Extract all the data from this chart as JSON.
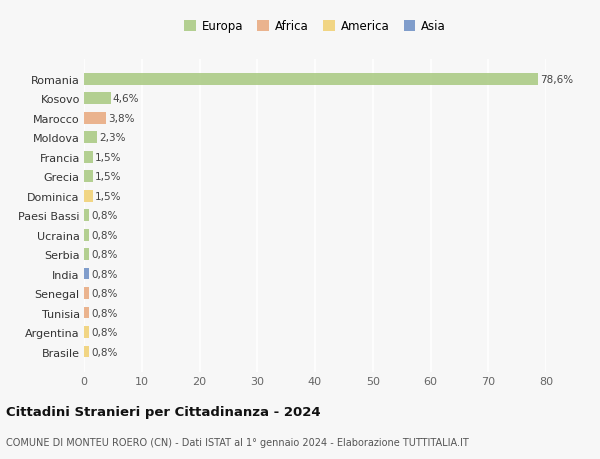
{
  "title": "Cittadini Stranieri per Cittadinanza - 2024",
  "subtitle": "COMUNE DI MONTEU ROERO (CN) - Dati ISTAT al 1° gennaio 2024 - Elaborazione TUTTITALIA.IT",
  "categories": [
    "Romania",
    "Kosovo",
    "Marocco",
    "Moldova",
    "Francia",
    "Grecia",
    "Dominica",
    "Paesi Bassi",
    "Ucraina",
    "Serbia",
    "India",
    "Senegal",
    "Tunisia",
    "Argentina",
    "Brasile"
  ],
  "values": [
    78.6,
    4.6,
    3.8,
    2.3,
    1.5,
    1.5,
    1.5,
    0.8,
    0.8,
    0.8,
    0.8,
    0.8,
    0.8,
    0.8,
    0.8
  ],
  "labels": [
    "78,6%",
    "4,6%",
    "3,8%",
    "2,3%",
    "1,5%",
    "1,5%",
    "1,5%",
    "0,8%",
    "0,8%",
    "0,8%",
    "0,8%",
    "0,8%",
    "0,8%",
    "0,8%",
    "0,8%"
  ],
  "colors": [
    "#a8c97f",
    "#a8c97f",
    "#e8a87c",
    "#a8c97f",
    "#a8c97f",
    "#a8c97f",
    "#f0d070",
    "#a8c97f",
    "#a8c97f",
    "#a8c97f",
    "#6b8ec4",
    "#e8a87c",
    "#e8a87c",
    "#f0d070",
    "#f0d070"
  ],
  "continent_colors": {
    "Europa": "#a8c97f",
    "Africa": "#e8a87c",
    "America": "#f0d070",
    "Asia": "#6b8ec4"
  },
  "xlim": [
    0,
    80
  ],
  "xticks": [
    0,
    10,
    20,
    30,
    40,
    50,
    60,
    70,
    80
  ],
  "background_color": "#f7f7f7",
  "bar_height": 0.6,
  "bar_alpha": 0.85
}
